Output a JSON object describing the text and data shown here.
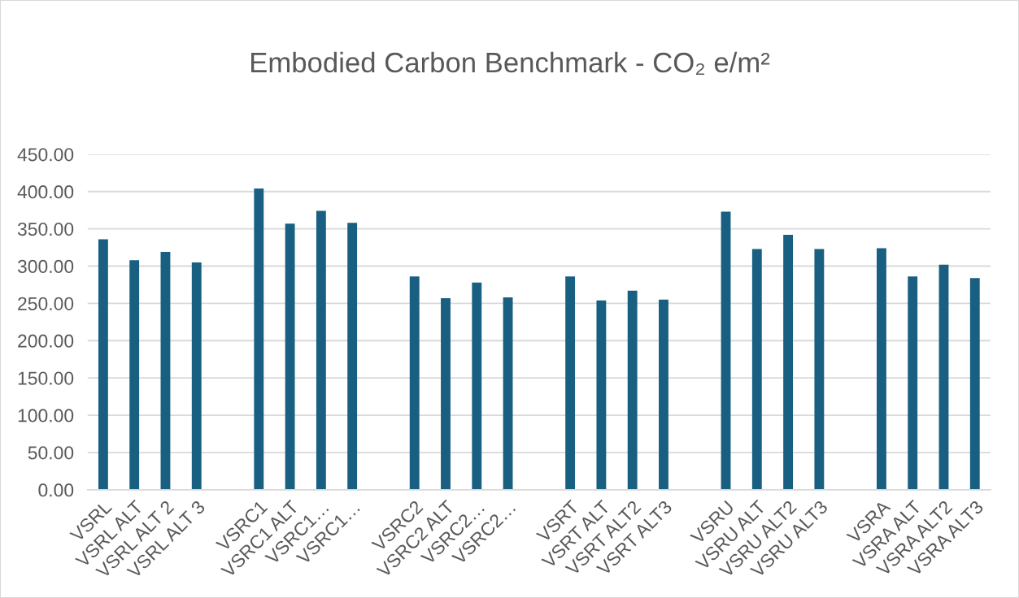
{
  "chart_data": {
    "type": "bar",
    "title": "Embodied Carbon Benchmark - CO₂ e/m²",
    "categories": [
      "VSRL",
      "VSRL ALT",
      "VSRL ALT 2",
      "VSRL ALT 3",
      null,
      "VSRC1",
      "VSRC1 ALT",
      "VSRC1…",
      "VSRC1…",
      null,
      "VSRC2",
      "VSRC2 ALT",
      "VSRC2…",
      "VSRC2…",
      null,
      "VSRT",
      "VSRT ALT",
      "VSRT ALT2",
      "VSRT ALT3",
      null,
      "VSRU",
      "VSRU ALT",
      "VSRU ALT2",
      "VSRU ALT3",
      null,
      "VSRA",
      "VSRA ALT",
      "VSRA ALT2",
      "VSRA ALT3"
    ],
    "values": [
      336,
      308,
      319,
      305,
      null,
      404,
      357,
      374,
      358,
      null,
      286,
      257,
      278,
      258,
      null,
      286,
      254,
      267,
      255,
      null,
      373,
      323,
      342,
      323,
      null,
      324,
      286,
      302,
      284
    ],
    "color": "#185f82",
    "ylim": [
      0,
      450
    ],
    "yticks": [
      {
        "value": 0,
        "label": "0.00"
      },
      {
        "value": 50,
        "label": "50.00"
      },
      {
        "value": 100,
        "label": "100.00"
      },
      {
        "value": 150,
        "label": "150.00"
      },
      {
        "value": 200,
        "label": "200.00"
      },
      {
        "value": 250,
        "label": "250.00"
      },
      {
        "value": 300,
        "label": "300.00"
      },
      {
        "value": 350,
        "label": "350.00"
      },
      {
        "value": 400,
        "label": "400.00"
      },
      {
        "value": 450,
        "label": "450.00"
      }
    ],
    "grid": "y"
  }
}
